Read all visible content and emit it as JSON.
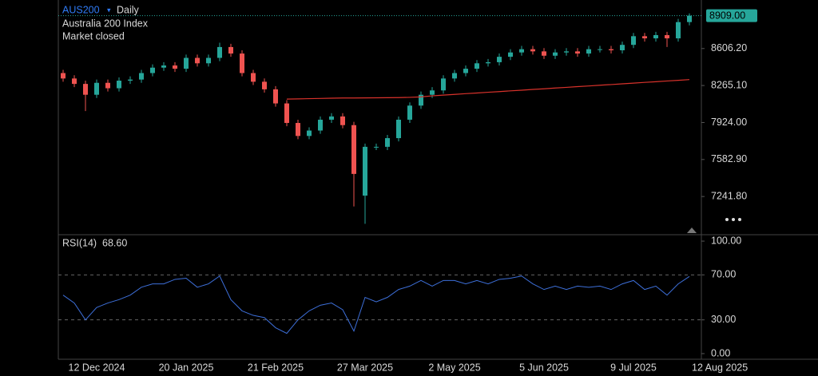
{
  "header": {
    "symbol": "AUS200",
    "interval": "Daily",
    "name": "Australia 200 Index",
    "status": "Market closed"
  },
  "chart_data": [
    {
      "type": "candlestick",
      "categories": [
        null,
        null,
        null,
        "12 Dec 2024",
        null,
        null,
        null,
        null,
        null,
        null,
        null,
        "20 Jan 2025",
        null,
        null,
        null,
        null,
        null,
        null,
        null,
        "21 Feb 2025",
        null,
        null,
        null,
        null,
        null,
        null,
        null,
        "27 Mar 2025",
        null,
        null,
        null,
        null,
        null,
        null,
        null,
        "2 May 2025",
        null,
        null,
        null,
        null,
        null,
        null,
        null,
        "5 Jun 2025",
        null,
        null,
        null,
        null,
        null,
        null,
        null,
        "9 Jul 2025",
        null,
        null,
        null,
        null,
        "12 Aug 2025"
      ],
      "open": [
        8380,
        8330,
        8280,
        8180,
        8290,
        8240,
        8310,
        8320,
        8380,
        8430,
        8450,
        8420,
        8520,
        8470,
        8520,
        8620,
        8560,
        8380,
        8300,
        8230,
        8100,
        7920,
        7800,
        7850,
        7950,
        7980,
        7900,
        7250,
        7700,
        7700,
        7780,
        7950,
        8080,
        8180,
        8220,
        8330,
        8380,
        8420,
        8470,
        8480,
        8530,
        8570,
        8600,
        8580,
        8540,
        8570,
        8580,
        8560,
        8600,
        8600,
        8590,
        8640,
        8720,
        8700,
        8730,
        8700,
        8850
      ],
      "high": [
        8410,
        8360,
        8310,
        8320,
        8320,
        8340,
        8350,
        8410,
        8460,
        8480,
        8480,
        8550,
        8550,
        8550,
        8660,
        8650,
        8590,
        8410,
        8330,
        8260,
        8130,
        7950,
        7880,
        7980,
        8010,
        8010,
        7930,
        7730,
        7730,
        7810,
        7980,
        8110,
        8210,
        8250,
        8360,
        8410,
        8450,
        8500,
        8510,
        8560,
        8600,
        8630,
        8630,
        8610,
        8600,
        8610,
        8610,
        8630,
        8630,
        8630,
        8670,
        8750,
        8750,
        8760,
        8760,
        8880,
        8930
      ],
      "low": [
        8300,
        8250,
        8030,
        8150,
        8210,
        8210,
        8280,
        8290,
        8350,
        8400,
        8390,
        8390,
        8440,
        8440,
        8490,
        8530,
        8350,
        8270,
        8200,
        8070,
        7890,
        7770,
        7770,
        7820,
        7920,
        7870,
        7150,
        6990,
        7670,
        7670,
        7750,
        7920,
        8050,
        8150,
        8190,
        8300,
        8350,
        8390,
        8440,
        8450,
        8500,
        8540,
        8550,
        8510,
        8510,
        8540,
        8530,
        8530,
        8570,
        8560,
        8560,
        8610,
        8670,
        8670,
        8620,
        8670,
        8820
      ],
      "close": [
        8330,
        8280,
        8180,
        8290,
        8240,
        8310,
        8320,
        8380,
        8430,
        8450,
        8420,
        8520,
        8470,
        8520,
        8620,
        8560,
        8380,
        8300,
        8230,
        8100,
        7920,
        7800,
        7850,
        7950,
        7980,
        7900,
        7450,
        7700,
        7700,
        7780,
        7950,
        8080,
        8180,
        8220,
        8330,
        8380,
        8420,
        8470,
        8480,
        8530,
        8570,
        8600,
        8580,
        8540,
        8570,
        8580,
        8560,
        8600,
        8600,
        8590,
        8640,
        8720,
        8700,
        8730,
        8700,
        8850,
        8909
      ],
      "last_label": "8909.00",
      "up_color": "#26a69a",
      "down_color": "#ef5350",
      "ma": {
        "color": "#d8322b",
        "values": [
          null,
          null,
          null,
          null,
          null,
          null,
          null,
          null,
          null,
          null,
          null,
          null,
          null,
          null,
          null,
          null,
          null,
          null,
          null,
          null,
          8140,
          8142,
          8144,
          8146,
          8148,
          8150,
          8150,
          8151,
          8152,
          8153,
          8154,
          8156,
          8160,
          8170,
          8177,
          8183,
          8190,
          8196,
          8203,
          8209,
          8216,
          8222,
          8229,
          8235,
          8242,
          8248,
          8255,
          8261,
          8268,
          8274,
          8281,
          8287,
          8294,
          8300,
          8307,
          8313,
          8320
        ]
      },
      "ylim": [
        6897,
        8980
      ],
      "yticks": [
        {
          "value": 7241.8,
          "label": "7241.80"
        },
        {
          "value": 7582.9,
          "label": "7582.90"
        },
        {
          "value": 7924,
          "label": "7924.00"
        },
        {
          "value": 8265.1,
          "label": "8265.10"
        },
        {
          "value": 8606.2,
          "label": "8606.20"
        }
      ]
    },
    {
      "type": "line",
      "title": "RSI(14)",
      "last_label": "68.60",
      "color": "#3d6fd9",
      "values": [
        52,
        45,
        30,
        41,
        45,
        48,
        52,
        59,
        62,
        62,
        66,
        67,
        59,
        62,
        69,
        48,
        38,
        34,
        32,
        23,
        18,
        30,
        38,
        43,
        45,
        39,
        20,
        50,
        46,
        50,
        57,
        60,
        65,
        60,
        65,
        65,
        62,
        65,
        62,
        66,
        67,
        69,
        62,
        57,
        60,
        57,
        60,
        59,
        60,
        57,
        62,
        65,
        57,
        60,
        52,
        62,
        68.6
      ],
      "ylim": [
        -5,
        105
      ],
      "yticks": [
        {
          "value": 0,
          "label": "0.00"
        },
        {
          "value": 30,
          "label": "30.00"
        },
        {
          "value": 70,
          "label": "70.00"
        },
        {
          "value": 100,
          "label": "100.00"
        }
      ],
      "dashed_levels": [
        30,
        70
      ]
    }
  ]
}
